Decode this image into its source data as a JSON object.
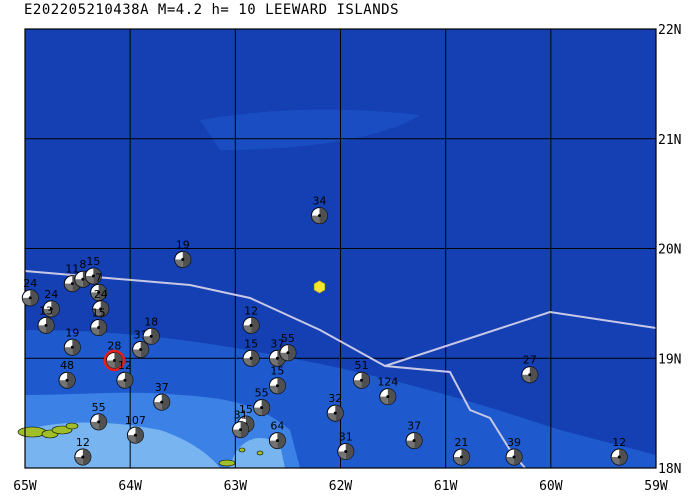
{
  "title": "E202205210438A M=4.2 h= 10 LEEWARD ISLANDS",
  "colors": {
    "ocean_deep": "#1440b4",
    "ocean_mid": "#1e5acd",
    "shelf": "#3c82e6",
    "shallow": "#78b4f0",
    "land": "#a0be28",
    "grid": "#000000",
    "plate_boundary": "#c8c8e6",
    "epicenter_star": "#f5e632",
    "mechanism_dark": "#505050",
    "highlight_ring": "#e61e1e"
  },
  "map": {
    "lon_range": [
      -65,
      -59
    ],
    "lat_range": [
      18,
      22
    ],
    "lon_ticks": [
      "65W",
      "64W",
      "63W",
      "62W",
      "61W",
      "60W",
      "59W"
    ],
    "lat_ticks": [
      "22N",
      "21N",
      "20N",
      "19N",
      "18N"
    ],
    "epicenter": {
      "lon": -62.2,
      "lat": 19.65
    },
    "mechanisms": [
      {
        "lon": -62.2,
        "lat": 20.3,
        "label": "34",
        "highlight": false
      },
      {
        "lon": -63.5,
        "lat": 19.9,
        "label": "19",
        "highlight": false
      },
      {
        "lon": -64.95,
        "lat": 19.55,
        "label": "24",
        "highlight": false
      },
      {
        "lon": -64.55,
        "lat": 19.68,
        "label": "11",
        "highlight": false
      },
      {
        "lon": -64.45,
        "lat": 19.72,
        "label": "8",
        "highlight": false
      },
      {
        "lon": -64.35,
        "lat": 19.75,
        "label": "15",
        "highlight": false
      },
      {
        "lon": -64.3,
        "lat": 19.6,
        "label": "7",
        "highlight": false
      },
      {
        "lon": -64.28,
        "lat": 19.45,
        "label": "24",
        "highlight": false
      },
      {
        "lon": -64.75,
        "lat": 19.45,
        "label": "24",
        "highlight": false
      },
      {
        "lon": -64.8,
        "lat": 19.3,
        "label": "13",
        "highlight": false
      },
      {
        "lon": -64.3,
        "lat": 19.28,
        "label": "15",
        "highlight": false
      },
      {
        "lon": -64.55,
        "lat": 19.1,
        "label": "19",
        "highlight": false
      },
      {
        "lon": -64.15,
        "lat": 18.98,
        "label": "28",
        "highlight": true
      },
      {
        "lon": -63.9,
        "lat": 19.08,
        "label": "33",
        "highlight": false
      },
      {
        "lon": -63.8,
        "lat": 19.2,
        "label": "18",
        "highlight": false
      },
      {
        "lon": -64.05,
        "lat": 18.8,
        "label": "12",
        "highlight": false
      },
      {
        "lon": -64.6,
        "lat": 18.8,
        "label": "48",
        "highlight": false
      },
      {
        "lon": -63.7,
        "lat": 18.6,
        "label": "37",
        "highlight": false
      },
      {
        "lon": -64.3,
        "lat": 18.42,
        "label": "55",
        "highlight": false
      },
      {
        "lon": -63.95,
        "lat": 18.3,
        "label": "107",
        "highlight": false
      },
      {
        "lon": -64.45,
        "lat": 18.1,
        "label": "12",
        "highlight": false
      },
      {
        "lon": -62.85,
        "lat": 19.3,
        "label": "12",
        "highlight": false
      },
      {
        "lon": -62.6,
        "lat": 19.0,
        "label": "37",
        "highlight": false
      },
      {
        "lon": -62.5,
        "lat": 19.05,
        "label": "55",
        "highlight": false
      },
      {
        "lon": -62.85,
        "lat": 19.0,
        "label": "15",
        "highlight": false
      },
      {
        "lon": -62.6,
        "lat": 18.75,
        "label": "15",
        "highlight": false
      },
      {
        "lon": -62.75,
        "lat": 18.55,
        "label": "55",
        "highlight": false
      },
      {
        "lon": -62.9,
        "lat": 18.4,
        "label": "15",
        "highlight": false
      },
      {
        "lon": -62.95,
        "lat": 18.35,
        "label": "31",
        "highlight": false
      },
      {
        "lon": -62.6,
        "lat": 18.25,
        "label": "64",
        "highlight": false
      },
      {
        "lon": -61.8,
        "lat": 18.8,
        "label": "51",
        "highlight": false
      },
      {
        "lon": -61.55,
        "lat": 18.65,
        "label": "124",
        "highlight": false
      },
      {
        "lon": -62.05,
        "lat": 18.5,
        "label": "32",
        "highlight": false
      },
      {
        "lon": -61.95,
        "lat": 18.15,
        "label": "31",
        "highlight": false
      },
      {
        "lon": -61.3,
        "lat": 18.25,
        "label": "37",
        "highlight": false
      },
      {
        "lon": -60.85,
        "lat": 18.1,
        "label": "21",
        "highlight": false
      },
      {
        "lon": -60.2,
        "lat": 18.85,
        "label": "27",
        "highlight": false
      },
      {
        "lon": -60.35,
        "lat": 18.1,
        "label": "39",
        "highlight": false
      },
      {
        "lon": -59.35,
        "lat": 18.1,
        "label": "12",
        "highlight": false
      }
    ]
  }
}
